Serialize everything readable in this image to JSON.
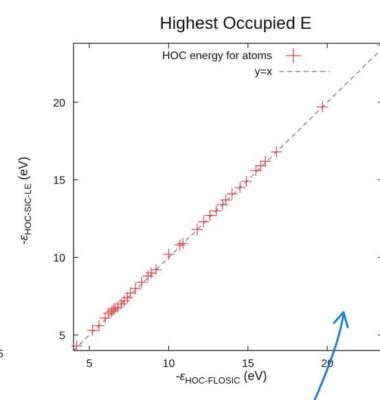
{
  "chart_data": {
    "type": "scatter",
    "title": "Highest Occupied E",
    "xlabel": {
      "prefix": "-ε",
      "sub": "HOC-FLOSIC",
      "suffix": " (eV)"
    },
    "ylabel": {
      "prefix": "-ε",
      "sub": "HOC-SIC-LE",
      "suffix": " (eV)"
    },
    "xlim": [
      4,
      23.5
    ],
    "ylim": [
      4,
      23.8
    ],
    "xticks": [
      5,
      10,
      15,
      20
    ],
    "yticks": [
      5,
      10,
      15,
      20
    ],
    "grid": false,
    "legend_position": "top-right",
    "edge_digit": "5",
    "series": [
      {
        "name": "HOC energy for atoms",
        "color": "#e8393b",
        "marker": "plus",
        "points": [
          [
            4.2,
            4.3
          ],
          [
            5.2,
            5.3
          ],
          [
            5.6,
            5.6
          ],
          [
            6.0,
            6.1
          ],
          [
            6.2,
            6.4
          ],
          [
            6.4,
            6.5
          ],
          [
            6.5,
            6.6
          ],
          [
            6.6,
            6.7
          ],
          [
            6.8,
            6.8
          ],
          [
            7.0,
            7.0
          ],
          [
            7.2,
            7.2
          ],
          [
            7.4,
            7.4
          ],
          [
            7.6,
            7.7
          ],
          [
            7.9,
            8.0
          ],
          [
            8.3,
            8.4
          ],
          [
            8.7,
            8.8
          ],
          [
            8.9,
            9.0
          ],
          [
            9.2,
            9.2
          ],
          [
            10.0,
            10.2
          ],
          [
            10.7,
            10.8
          ],
          [
            10.9,
            10.9
          ],
          [
            11.8,
            11.8
          ],
          [
            12.2,
            12.3
          ],
          [
            12.6,
            12.7
          ],
          [
            13.0,
            13.0
          ],
          [
            13.4,
            13.4
          ],
          [
            13.6,
            13.7
          ],
          [
            14.0,
            14.1
          ],
          [
            14.5,
            14.5
          ],
          [
            14.9,
            14.9
          ],
          [
            15.5,
            15.6
          ],
          [
            15.8,
            15.9
          ],
          [
            16.1,
            16.2
          ],
          [
            16.8,
            16.8
          ],
          [
            19.7,
            19.7
          ],
          [
            23.5,
            23.7
          ]
        ]
      },
      {
        "name": "y=x",
        "color": "#555555",
        "style": "dashed",
        "line": [
          [
            4,
            4
          ],
          [
            23.8,
            23.8
          ]
        ]
      }
    ]
  },
  "annotation": {
    "type": "arrow",
    "color": "#1a7fd6"
  }
}
